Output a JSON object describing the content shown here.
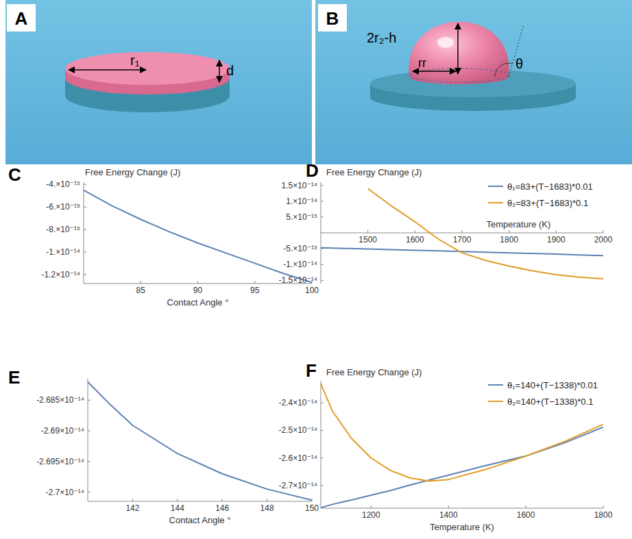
{
  "chart_data": [
    {
      "type": "line",
      "panel_label": "C",
      "y_label": "Free Energy Change (J)",
      "x_label": "Contact Angle °",
      "x": [
        80,
        82.5,
        85,
        87.5,
        90,
        92.5,
        95,
        97.5,
        100
      ],
      "series": [
        {
          "color": "#5e81b5",
          "values": [
            -4.5e-15,
            -5.9e-15,
            -7.1e-15,
            -8.2e-15,
            -9.2e-15,
            -1.01e-14,
            -1.1e-14,
            -1.19e-14,
            -1.27e-14
          ]
        }
      ],
      "xlim": [
        80,
        100
      ],
      "xticks": [
        85,
        90,
        95,
        100
      ],
      "ylim": [
        -1.28e-14,
        -3.8e-15
      ],
      "yticks": [
        {
          "value": -4e-15,
          "label": "-4.×10⁻¹⁵"
        },
        {
          "value": -6e-15,
          "label": "-6.×10⁻¹⁵"
        },
        {
          "value": -8e-15,
          "label": "-8.×10⁻¹⁵"
        },
        {
          "value": -1e-14,
          "label": "-1.×10⁻¹⁴"
        },
        {
          "value": -1.2e-14,
          "label": "-1.2×10⁻¹⁴"
        }
      ]
    },
    {
      "type": "line",
      "panel_label": "D",
      "y_label": "Free Energy Change (J)",
      "x_label": "Temperature (K)",
      "x": [
        1400,
        1450,
        1500,
        1550,
        1600,
        1650,
        1700,
        1750,
        1800,
        1850,
        1900,
        1950,
        2000
      ],
      "series": [
        {
          "name": "θ₁=83+(T−1683)*0.01",
          "color": "#5e81b5",
          "values": [
            -4.7e-15,
            -4.9e-15,
            -5.1e-15,
            -5.3e-15,
            -5.5e-15,
            -5.7e-15,
            -5.9e-15,
            -6.1e-15,
            -6.3e-15,
            -6.5e-15,
            -6.7e-15,
            -6.95e-15,
            -7.2e-15
          ]
        },
        {
          "name": "θ₂=83+(T−1683)*0.1",
          "color": "#e19c24",
          "values": [
            null,
            null,
            1.4e-14,
            8.5e-15,
            3.5e-15,
            -2e-15,
            -6.3e-15,
            -8.7e-15,
            -1.05e-14,
            -1.2e-14,
            -1.32e-14,
            -1.4e-14,
            -1.45e-14
          ]
        }
      ],
      "xlim": [
        1400,
        2000
      ],
      "xticks": [
        1500,
        1600,
        1700,
        1800,
        1900,
        2000
      ],
      "ylim": [
        -1.6e-14,
        1.6e-14
      ],
      "yticks": [
        {
          "value": 1.5e-14,
          "label": "1.5×10⁻¹⁴"
        },
        {
          "value": 1e-14,
          "label": "1.×10⁻¹⁴"
        },
        {
          "value": 5e-15,
          "label": "5.×10⁻¹⁵"
        },
        {
          "value": -5e-15,
          "label": "-5.×10⁻¹⁵"
        },
        {
          "value": -1e-14,
          "label": "-1.×10⁻¹⁴"
        },
        {
          "value": -1.5e-14,
          "label": "-1.5×10⁻¹⁴"
        }
      ],
      "legend": "top-right"
    },
    {
      "type": "line",
      "panel_label": "E",
      "x_label": "Contact Angle °",
      "x": [
        140,
        141,
        142,
        144,
        146,
        148,
        150
      ],
      "series": [
        {
          "color": "#5e81b5",
          "values": [
            -2.682e-14,
            -2.6857e-14,
            -2.6891e-14,
            -2.6937e-14,
            -2.697e-14,
            -2.6995e-14,
            -2.7013e-14
          ]
        }
      ],
      "xlim": [
        140,
        150
      ],
      "xticks": [
        142,
        144,
        146,
        148,
        150
      ],
      "ylim": [
        -2.7015e-14,
        -2.6815e-14
      ],
      "yticks": [
        {
          "value": -2.685e-14,
          "label": "-2.685×10⁻¹⁴"
        },
        {
          "value": -2.69e-14,
          "label": "-2.69×10⁻¹⁴"
        },
        {
          "value": -2.695e-14,
          "label": "-2.695×10⁻¹⁴"
        },
        {
          "value": -2.7e-14,
          "label": "-2.7×10⁻¹⁴"
        }
      ]
    },
    {
      "type": "line",
      "panel_label": "F",
      "y_label": "Free Energy Change (J)",
      "x_label": "Temperature (K)",
      "x": [
        1070,
        1100,
        1150,
        1200,
        1250,
        1300,
        1350,
        1400,
        1500,
        1600,
        1700,
        1800
      ],
      "series": [
        {
          "name": "θ₁=140+(T−1338)*0.01",
          "color": "#5e81b5",
          "values": [
            -2.78e-14,
            -2.768e-14,
            -2.752e-14,
            -2.735e-14,
            -2.718e-14,
            -2.698e-14,
            -2.68e-14,
            -2.662e-14,
            -2.626e-14,
            -2.593e-14,
            -2.545e-14,
            -2.488e-14
          ]
        },
        {
          "name": "θ₂=140+(T−1338)*0.1",
          "color": "#e19c24",
          "values": [
            -2.33e-14,
            -2.43e-14,
            -2.53e-14,
            -2.6e-14,
            -2.645e-14,
            -2.672e-14,
            -2.684e-14,
            -2.678e-14,
            -2.64e-14,
            -2.593e-14,
            -2.54e-14,
            -2.478e-14
          ]
        }
      ],
      "xlim": [
        1070,
        1800
      ],
      "xticks": [
        1200,
        1400,
        1600,
        1800
      ],
      "ylim": [
        -2.782e-14,
        -2.32e-14
      ],
      "yticks": [
        {
          "value": -2.4e-14,
          "label": "-2.4×10⁻¹⁴"
        },
        {
          "value": -2.5e-14,
          "label": "-2.5×10⁻¹⁴"
        },
        {
          "value": -2.6e-14,
          "label": "-2.6×10⁻¹⁴"
        },
        {
          "value": -2.7e-14,
          "label": "-2.7×10⁻¹⁴"
        }
      ],
      "legend": "top-right"
    }
  ],
  "illustrations": [
    {
      "panel_label": "A",
      "labels": [
        "r₁",
        "d"
      ]
    },
    {
      "panel_label": "B",
      "labels": [
        "2r₂-h",
        "rr",
        "θ"
      ]
    }
  ]
}
